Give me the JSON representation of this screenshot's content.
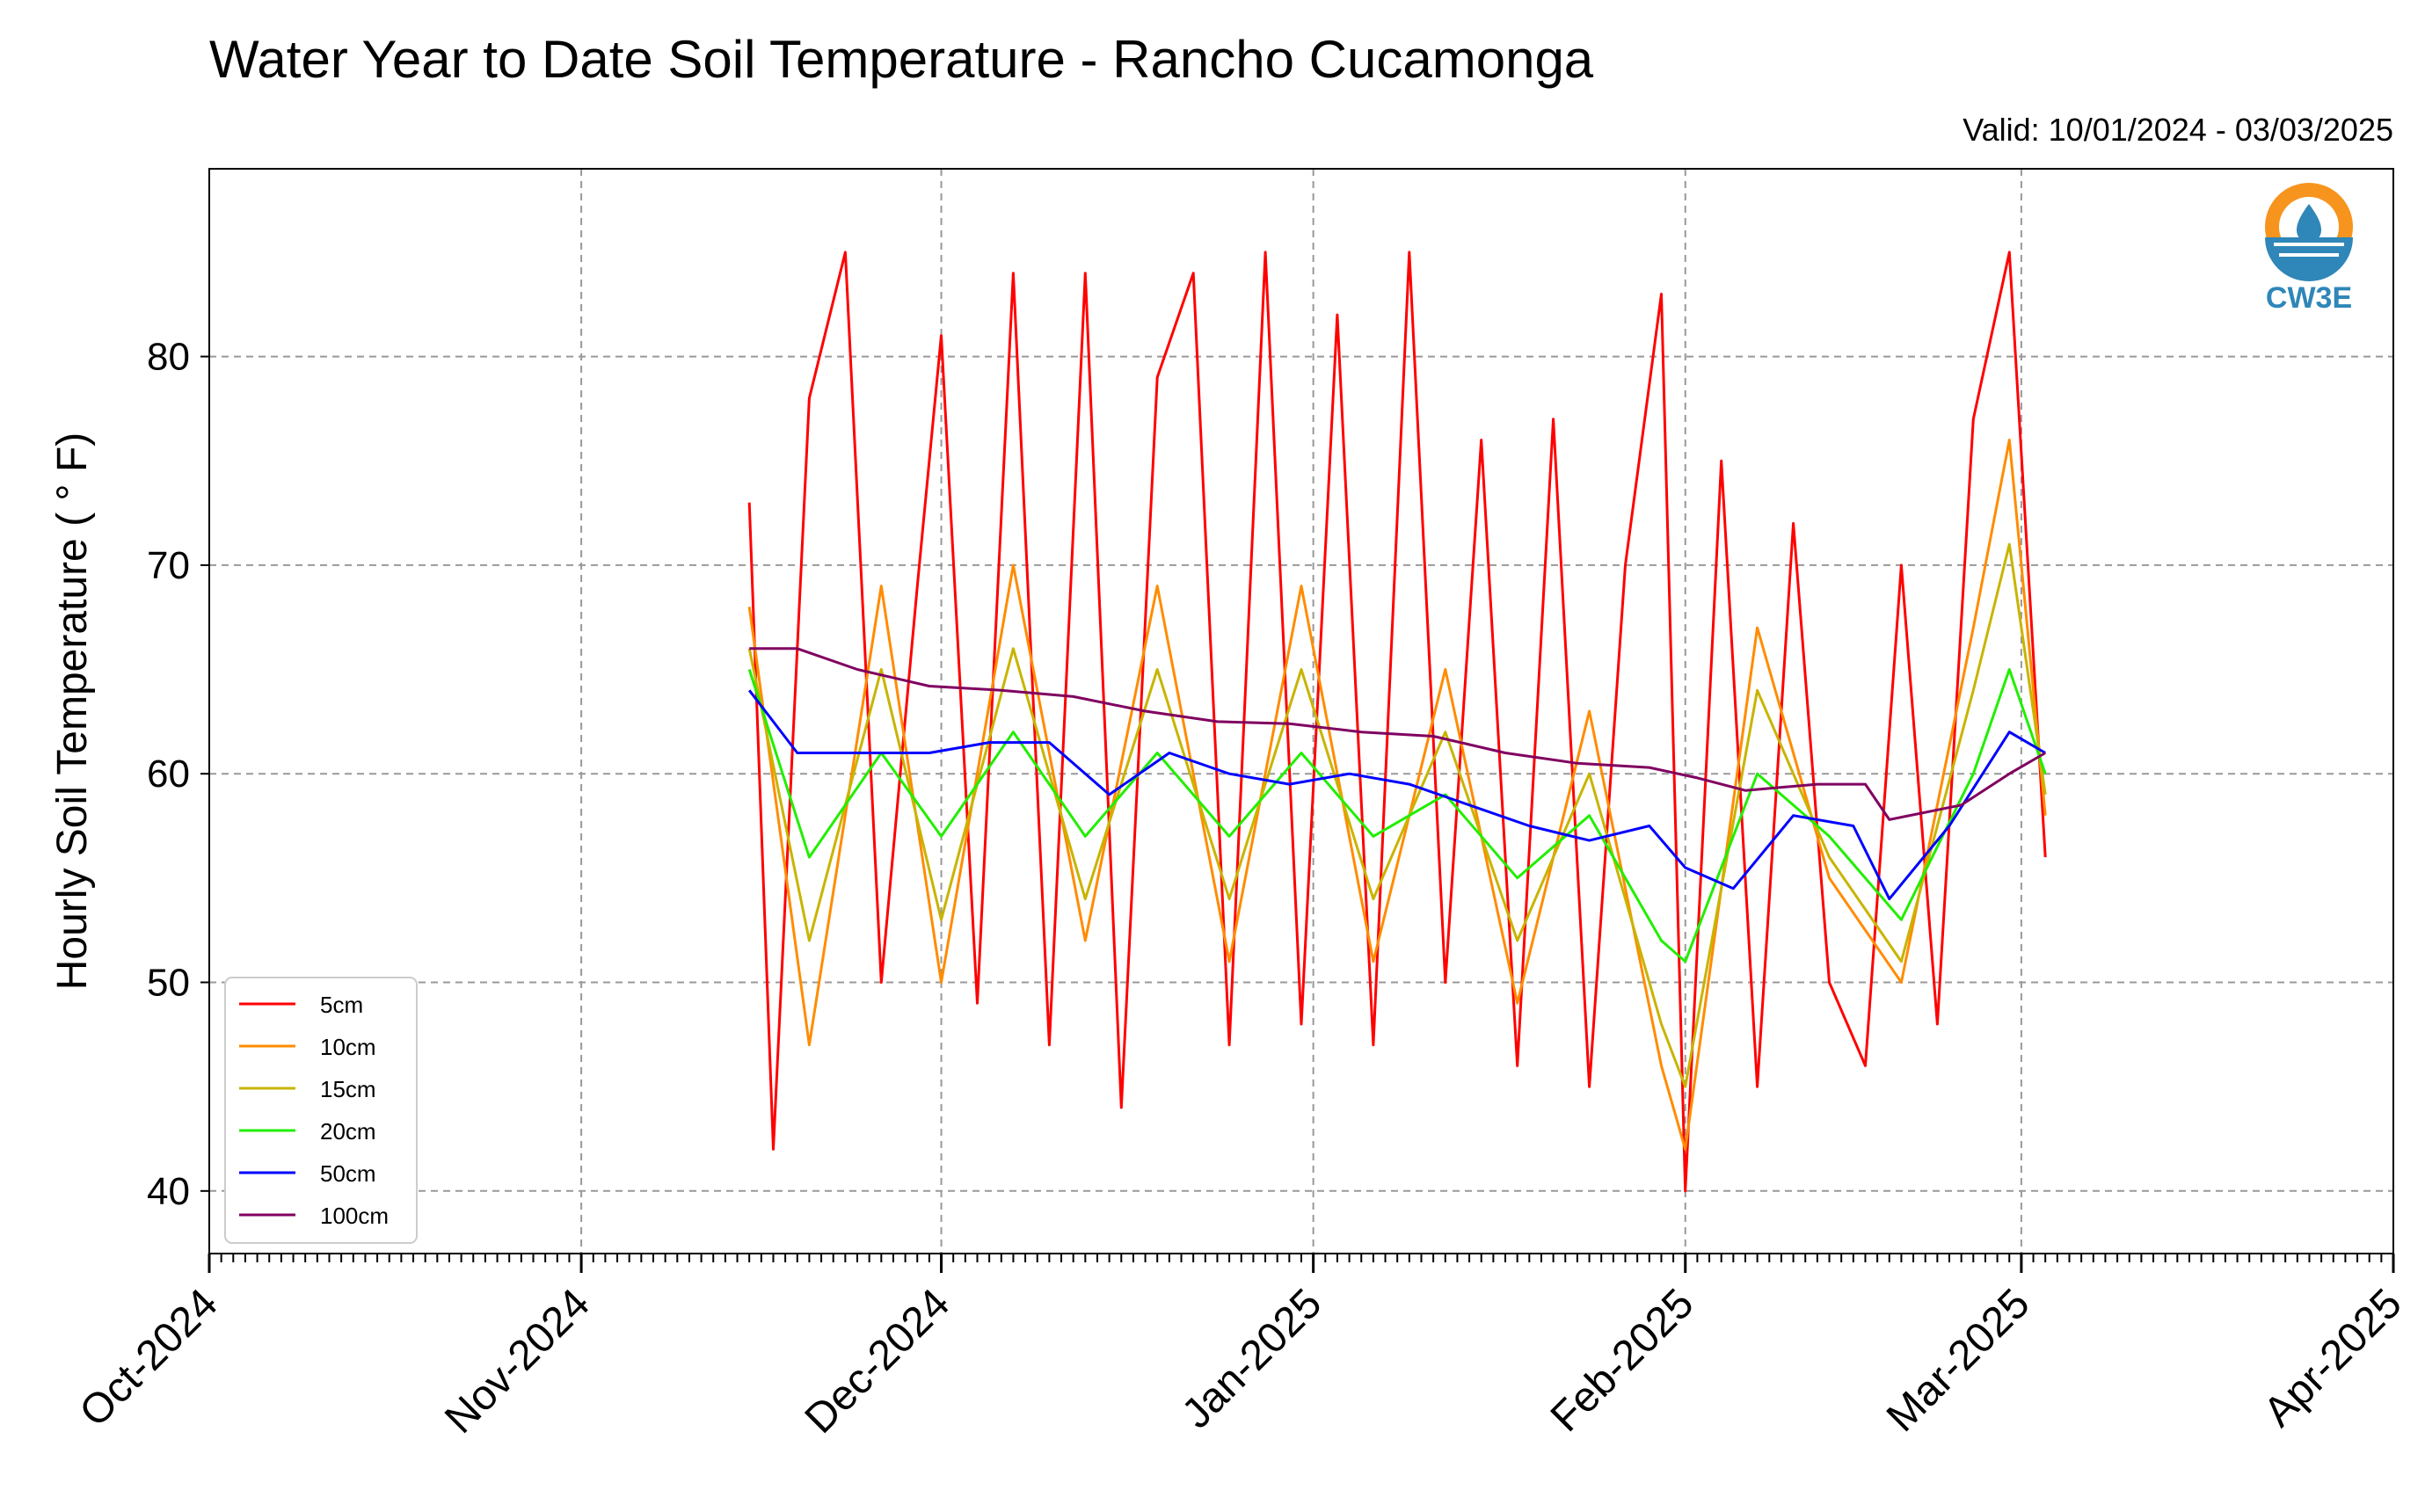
{
  "chart_data": {
    "type": "line",
    "title": "Water Year to Date Soil Temperature - Rancho Cucamonga",
    "subtitle": "Valid: 10/01/2024 - 03/03/2025",
    "ylabel": "Hourly Soil Temperature ( ° F)",
    "xlabel": "",
    "ylim": [
      37,
      89
    ],
    "xlim": [
      "2024-10-01",
      "2025-04-01"
    ],
    "yticks": [
      40,
      50,
      60,
      70,
      80
    ],
    "xticks": [
      "Oct-2024",
      "Nov-2024",
      "Dec-2024",
      "Jan-2025",
      "Feb-2025",
      "Mar-2025",
      "Apr-2025"
    ],
    "grid": true,
    "legend_position": "lower-left",
    "logo_text": "CW3E",
    "series": [
      {
        "name": "5cm",
        "color": "#ff0000",
        "x": [
          "2024-11-15",
          "2024-11-17",
          "2024-11-20",
          "2024-11-23",
          "2024-11-26",
          "2024-11-29",
          "2024-12-01",
          "2024-12-04",
          "2024-12-07",
          "2024-12-10",
          "2024-12-13",
          "2024-12-16",
          "2024-12-19",
          "2024-12-22",
          "2024-12-25",
          "2024-12-28",
          "2024-12-31",
          "2025-01-03",
          "2025-01-06",
          "2025-01-09",
          "2025-01-12",
          "2025-01-15",
          "2025-01-18",
          "2025-01-21",
          "2025-01-24",
          "2025-01-27",
          "2025-01-30",
          "2025-02-01",
          "2025-02-04",
          "2025-02-07",
          "2025-02-10",
          "2025-02-13",
          "2025-02-16",
          "2025-02-19",
          "2025-02-22",
          "2025-02-25",
          "2025-02-28",
          "2025-03-03"
        ],
        "values": [
          73,
          42,
          78,
          85,
          50,
          69,
          81,
          49,
          84,
          47,
          84,
          44,
          79,
          84,
          47,
          85,
          48,
          82,
          47,
          85,
          50,
          76,
          46,
          77,
          45,
          70,
          83,
          40,
          75,
          45,
          72,
          50,
          46,
          70,
          48,
          77,
          85,
          56
        ]
      },
      {
        "name": "10cm",
        "color": "#ff8c00",
        "x": [
          "2024-11-15",
          "2024-11-20",
          "2024-11-26",
          "2024-12-01",
          "2024-12-07",
          "2024-12-13",
          "2024-12-19",
          "2024-12-25",
          "2024-12-31",
          "2025-01-06",
          "2025-01-12",
          "2025-01-18",
          "2025-01-24",
          "2025-01-30",
          "2025-02-01",
          "2025-02-07",
          "2025-02-13",
          "2025-02-19",
          "2025-02-25",
          "2025-02-28",
          "2025-03-03"
        ],
        "values": [
          68,
          47,
          69,
          50,
          70,
          52,
          69,
          51,
          69,
          51,
          65,
          49,
          63,
          46,
          42,
          67,
          55,
          50,
          67,
          76,
          58
        ]
      },
      {
        "name": "15cm",
        "color": "#c8b400",
        "x": [
          "2024-11-15",
          "2024-11-20",
          "2024-11-26",
          "2024-12-01",
          "2024-12-07",
          "2024-12-13",
          "2024-12-19",
          "2024-12-25",
          "2024-12-31",
          "2025-01-06",
          "2025-01-12",
          "2025-01-18",
          "2025-01-24",
          "2025-01-30",
          "2025-02-01",
          "2025-02-07",
          "2025-02-13",
          "2025-02-19",
          "2025-02-25",
          "2025-02-28",
          "2025-03-03"
        ],
        "values": [
          66,
          52,
          65,
          53,
          66,
          54,
          65,
          54,
          65,
          54,
          62,
          52,
          60,
          48,
          45,
          64,
          56,
          51,
          64,
          71,
          59
        ]
      },
      {
        "name": "20cm",
        "color": "#22ee00",
        "x": [
          "2024-11-15",
          "2024-11-20",
          "2024-11-26",
          "2024-12-01",
          "2024-12-07",
          "2024-12-13",
          "2024-12-19",
          "2024-12-25",
          "2024-12-31",
          "2025-01-06",
          "2025-01-12",
          "2025-01-18",
          "2025-01-24",
          "2025-01-30",
          "2025-02-01",
          "2025-02-07",
          "2025-02-13",
          "2025-02-19",
          "2025-02-25",
          "2025-02-28",
          "2025-03-03"
        ],
        "values": [
          65,
          56,
          61,
          57,
          62,
          57,
          61,
          57,
          61,
          57,
          59,
          55,
          58,
          52,
          51,
          60,
          57,
          53,
          60,
          65,
          60
        ]
      },
      {
        "name": "50cm",
        "color": "#0000ff",
        "x": [
          "2024-11-15",
          "2024-11-19",
          "2024-11-24",
          "2024-11-30",
          "2024-12-05",
          "2024-12-10",
          "2024-12-15",
          "2024-12-20",
          "2024-12-25",
          "2024-12-30",
          "2025-01-04",
          "2025-01-09",
          "2025-01-14",
          "2025-01-19",
          "2025-01-24",
          "2025-01-29",
          "2025-02-01",
          "2025-02-05",
          "2025-02-10",
          "2025-02-15",
          "2025-02-18",
          "2025-02-23",
          "2025-02-28",
          "2025-03-03"
        ],
        "values": [
          64,
          61,
          61,
          61,
          61.5,
          61.5,
          59,
          61,
          60,
          59.5,
          60,
          59.5,
          58.5,
          57.5,
          56.8,
          57.5,
          55.5,
          54.5,
          58,
          57.5,
          54,
          57.5,
          62,
          61
        ]
      },
      {
        "name": "100cm",
        "color": "#800060",
        "x": [
          "2024-11-15",
          "2024-11-19",
          "2024-11-24",
          "2024-11-30",
          "2024-12-06",
          "2024-12-12",
          "2024-12-18",
          "2024-12-24",
          "2024-12-30",
          "2025-01-05",
          "2025-01-11",
          "2025-01-17",
          "2025-01-23",
          "2025-01-29",
          "2025-02-02",
          "2025-02-06",
          "2025-02-12",
          "2025-02-16",
          "2025-02-18",
          "2025-02-24",
          "2025-02-28",
          "2025-03-03"
        ],
        "values": [
          66,
          66,
          65,
          64.2,
          64,
          63.7,
          63,
          62.5,
          62.4,
          62,
          61.8,
          61,
          60.5,
          60.3,
          59.8,
          59.2,
          59.5,
          59.5,
          57.8,
          58.5,
          60,
          61
        ]
      }
    ]
  }
}
